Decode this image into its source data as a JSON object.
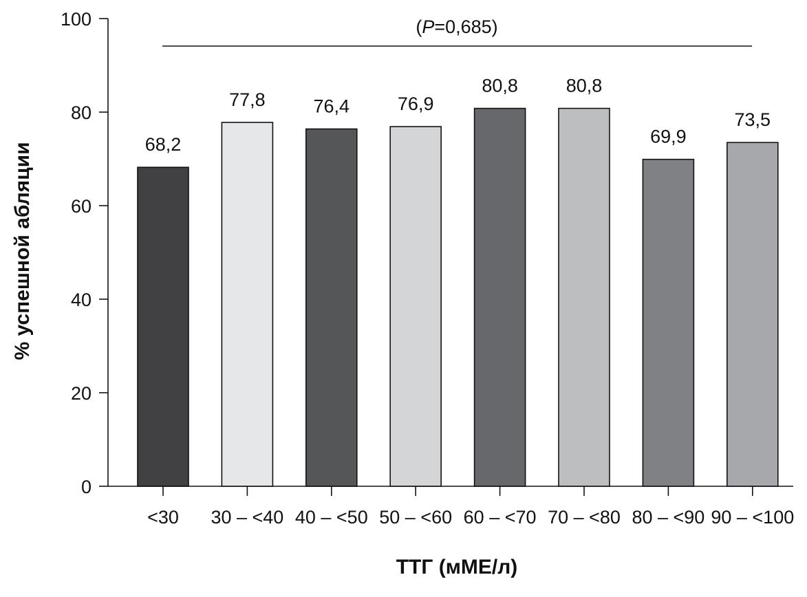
{
  "chart_data": {
    "type": "bar",
    "categories": [
      "<30",
      "30 – <40",
      "40 – <50",
      "50 – <60",
      "60 – <70",
      "70 – <80",
      "80 – <90",
      "90 – <100"
    ],
    "values": [
      68.2,
      77.8,
      76.4,
      76.9,
      80.8,
      80.8,
      69.9,
      73.5
    ],
    "value_labels": [
      "68,2",
      "77,8",
      "76,4",
      "76,9",
      "80,8",
      "80,8",
      "69,9",
      "73,5"
    ],
    "bar_colors": [
      "#414143",
      "#e6e7e9",
      "#555658",
      "#d4d5d7",
      "#67686c",
      "#bdbec0",
      "#808185",
      "#a7a8ab"
    ],
    "title": "",
    "xlabel": "ТТГ (мМЕ/л)",
    "ylabel": "% успешной абляции",
    "ylim": [
      0,
      100
    ],
    "yticks": [
      0,
      20,
      40,
      60,
      80,
      100
    ],
    "ytick_labels": [
      "0",
      "20",
      "40",
      "60",
      "80",
      "100"
    ],
    "annotation": {
      "text_open": "(",
      "text_italic": "P",
      "text_rest": "=0,685)"
    },
    "grid": false,
    "legend": "none"
  }
}
